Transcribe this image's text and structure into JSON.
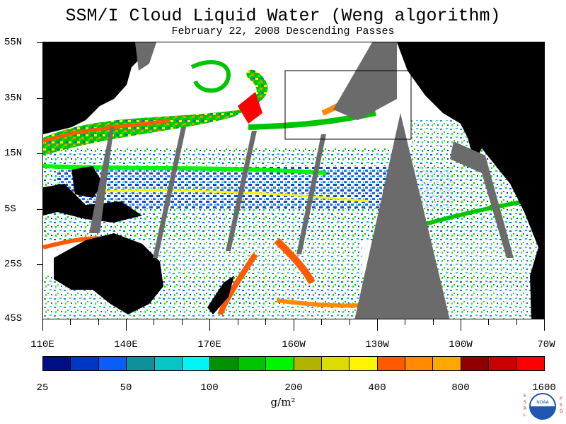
{
  "title": "SSM/I Cloud Liquid Water (Weng algorithm)",
  "subtitle": "February 22, 2008  Descending Passes",
  "units": "g/m²",
  "lat_labels": [
    "55N",
    "35N",
    "15N",
    "5S",
    "25S",
    "45S"
  ],
  "lon_labels": [
    "110E",
    "140E",
    "170E",
    "160W",
    "130W",
    "100W",
    "70W"
  ],
  "colorbar": {
    "colors": [
      "#000f85",
      "#0036c4",
      "#0a5ef8",
      "#0e9199",
      "#08c6c6",
      "#00f5f5",
      "#009100",
      "#00c400",
      "#00f500",
      "#b2b200",
      "#dcdc00",
      "#fff500",
      "#ff5a00",
      "#ff8a00",
      "#ffa800",
      "#910000",
      "#c80000",
      "#ff0000"
    ],
    "labels": [
      "25",
      "50",
      "100",
      "200",
      "400",
      "800",
      "1600"
    ]
  },
  "logo_text": {
    "center": "NOAA",
    "left": "ESRL",
    "right": "PSD"
  }
}
